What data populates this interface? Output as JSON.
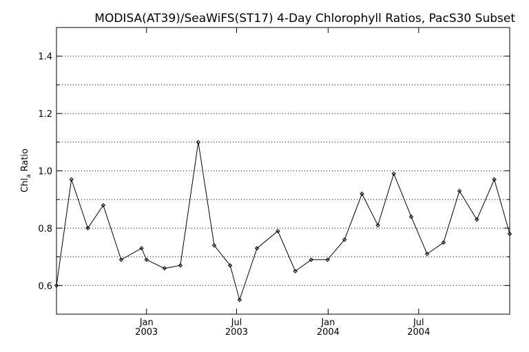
{
  "chart_data": {
    "type": "line",
    "title": "MODISA(AT39)/SeaWiFS(ST17) 4-Day Chlorophyll Ratios, PacS30 Subset",
    "ylabel_main": "Chl",
    "ylabel_sub": "a",
    "ylabel_rest": " Ratio",
    "ylim": [
      0.5,
      1.5
    ],
    "yticks": [
      0.6,
      0.8,
      1.0,
      1.2,
      1.4
    ],
    "ytick_labels": [
      "0.6",
      "0.8",
      "1.0",
      "1.2",
      "1.4"
    ],
    "ygrid": [
      0.6,
      0.7,
      0.8,
      0.9,
      1.0,
      1.1,
      1.2,
      1.3,
      1.4
    ],
    "xlim": [
      "2002-07-04",
      "2004-12-31"
    ],
    "xticks": [
      {
        "date": "2003-01-01",
        "label1": "Jan",
        "label2": "2003"
      },
      {
        "date": "2003-07-01",
        "label1": "Jul",
        "label2": "2003"
      },
      {
        "date": "2004-01-01",
        "label1": "Jan",
        "label2": "2004"
      },
      {
        "date": "2004-07-01",
        "label1": "Jul",
        "label2": "2004"
      }
    ],
    "grid": true,
    "series": [
      {
        "x": [
          "2002-07-04",
          "2002-08-03",
          "2002-09-05",
          "2002-10-06",
          "2002-11-11",
          "2002-12-22",
          "2003-01-01",
          "2003-02-06",
          "2003-03-10",
          "2003-04-15",
          "2003-05-17",
          "2003-06-18",
          "2003-07-07",
          "2003-08-11",
          "2003-09-22",
          "2003-10-27",
          "2003-11-28",
          "2003-12-31",
          "2004-02-03",
          "2004-03-09",
          "2004-04-10",
          "2004-05-12",
          "2004-06-16",
          "2004-07-18",
          "2004-08-20",
          "2004-09-21",
          "2004-10-26",
          "2004-11-30",
          "2004-12-31"
        ],
        "y": [
          0.6,
          0.97,
          0.8,
          0.88,
          0.69,
          0.73,
          0.69,
          0.66,
          0.67,
          1.1,
          0.74,
          0.67,
          0.55,
          0.73,
          0.79,
          0.65,
          0.69,
          0.69,
          0.76,
          0.92,
          0.81,
          0.99,
          0.84,
          0.71,
          0.75,
          0.93,
          0.83,
          0.97,
          0.78
        ]
      }
    ]
  }
}
